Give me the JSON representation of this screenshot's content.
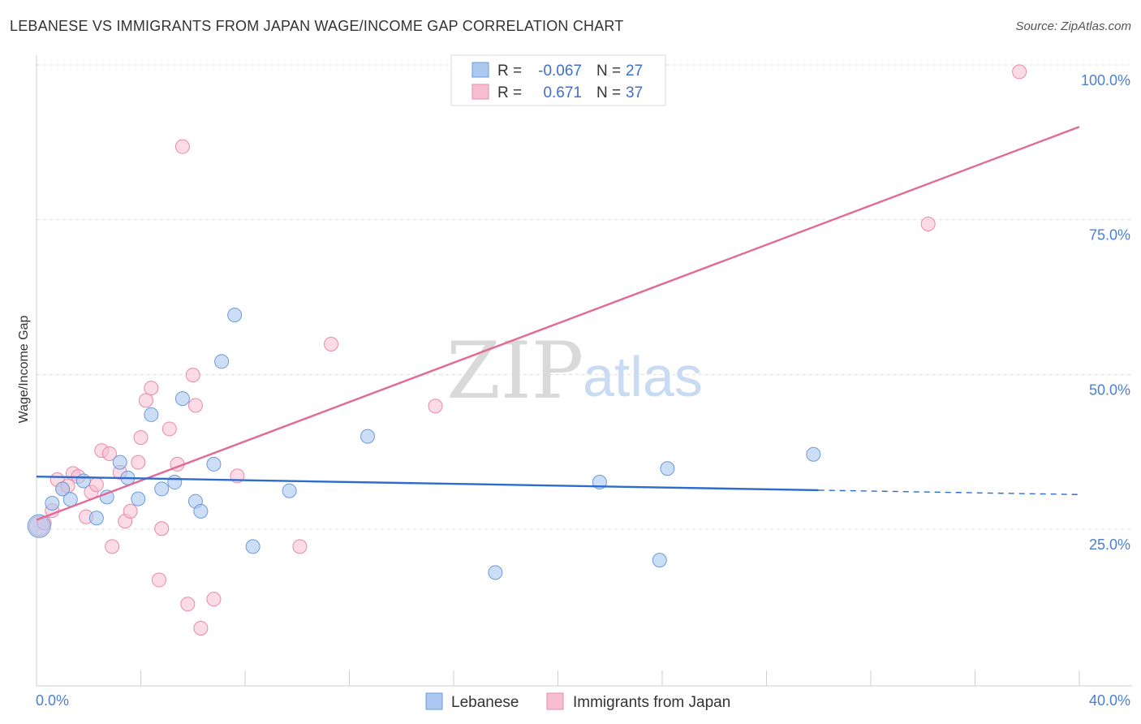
{
  "header": {
    "title": "LEBANESE VS IMMIGRANTS FROM JAPAN WAGE/INCOME GAP CORRELATION CHART",
    "source": "Source: ZipAtlas.com"
  },
  "watermark": {
    "zip": "ZIP",
    "atlas": "atlas"
  },
  "legend_box": {
    "rows": [
      {
        "r_label": "R =",
        "r_value": "-0.067",
        "n_label": "N =",
        "n_value": "27"
      },
      {
        "r_label": "R =",
        "r_value": " 0.671",
        "n_label": "N =",
        "n_value": "37"
      }
    ]
  },
  "bottom_legend": {
    "items": [
      "Lebanese",
      "Immigrants from Japan"
    ]
  },
  "colors": {
    "lebanese_fill": "#aac8f0",
    "lebanese_stroke": "#6d9ad8",
    "lebanese_line": "#2d6ccc",
    "japan_fill": "#f7bdd0",
    "japan_stroke": "#e88aa8",
    "japan_line": "#e26a96"
  },
  "chart_data": {
    "type": "scatter",
    "title": "LEBANESE VS IMMIGRANTS FROM JAPAN WAGE/INCOME GAP CORRELATION CHART",
    "xlabel": "",
    "ylabel": "Wage/Income Gap",
    "xlim": [
      0,
      40
    ],
    "ylim": [
      5,
      103
    ],
    "x_ticks_labeled": [
      "0.0%",
      "40.0%"
    ],
    "y_ticks": [
      25,
      50,
      75,
      100
    ],
    "y_tick_labels": [
      "25.0%",
      "50.0%",
      "75.0%",
      "100.0%"
    ],
    "grid": "dashed horizontal",
    "legend": "top-center",
    "series": [
      {
        "name": "Lebanese",
        "R": -0.067,
        "N": 27,
        "trend": {
          "x": [
            0,
            30
          ],
          "y": [
            33.5,
            31.3
          ],
          "dashed_to": [
            40,
            30.6
          ]
        },
        "points": [
          {
            "x": 0.1,
            "y": 25.5
          },
          {
            "x": 0.6,
            "y": 29.2
          },
          {
            "x": 1.0,
            "y": 31.5
          },
          {
            "x": 1.3,
            "y": 29.8
          },
          {
            "x": 1.8,
            "y": 32.8
          },
          {
            "x": 2.3,
            "y": 26.8
          },
          {
            "x": 2.7,
            "y": 30.2
          },
          {
            "x": 3.2,
            "y": 35.8
          },
          {
            "x": 3.5,
            "y": 33.3
          },
          {
            "x": 3.9,
            "y": 29.9
          },
          {
            "x": 4.4,
            "y": 43.5
          },
          {
            "x": 4.8,
            "y": 31.5
          },
          {
            "x": 5.3,
            "y": 32.6
          },
          {
            "x": 5.6,
            "y": 46.1
          },
          {
            "x": 6.1,
            "y": 29.5
          },
          {
            "x": 6.3,
            "y": 27.9
          },
          {
            "x": 6.8,
            "y": 35.5
          },
          {
            "x": 7.1,
            "y": 52.1
          },
          {
            "x": 7.6,
            "y": 59.6
          },
          {
            "x": 8.3,
            "y": 22.2
          },
          {
            "x": 9.7,
            "y": 31.2
          },
          {
            "x": 12.7,
            "y": 40.0
          },
          {
            "x": 17.6,
            "y": 18.0
          },
          {
            "x": 21.6,
            "y": 32.6
          },
          {
            "x": 23.9,
            "y": 20.0
          },
          {
            "x": 24.2,
            "y": 34.8
          },
          {
            "x": 29.8,
            "y": 37.1
          }
        ]
      },
      {
        "name": "Immigrants from Japan",
        "R": 0.671,
        "N": 37,
        "trend": {
          "x": [
            0,
            40
          ],
          "y": [
            26.5,
            90.0
          ]
        },
        "points": [
          {
            "x": 0.1,
            "y": 25.5
          },
          {
            "x": 0.3,
            "y": 26.0
          },
          {
            "x": 0.6,
            "y": 28.0
          },
          {
            "x": 0.8,
            "y": 33.0
          },
          {
            "x": 1.0,
            "y": 31.5
          },
          {
            "x": 1.2,
            "y": 32.0
          },
          {
            "x": 1.4,
            "y": 34.0
          },
          {
            "x": 1.6,
            "y": 33.5
          },
          {
            "x": 1.9,
            "y": 27.0
          },
          {
            "x": 2.1,
            "y": 31.0
          },
          {
            "x": 2.3,
            "y": 32.2
          },
          {
            "x": 2.5,
            "y": 37.7
          },
          {
            "x": 2.8,
            "y": 37.2
          },
          {
            "x": 2.9,
            "y": 22.2
          },
          {
            "x": 3.2,
            "y": 34.2
          },
          {
            "x": 3.4,
            "y": 26.3
          },
          {
            "x": 3.6,
            "y": 27.9
          },
          {
            "x": 3.9,
            "y": 35.8
          },
          {
            "x": 4.0,
            "y": 39.8
          },
          {
            "x": 4.2,
            "y": 45.8
          },
          {
            "x": 4.4,
            "y": 47.8
          },
          {
            "x": 4.7,
            "y": 16.8
          },
          {
            "x": 4.8,
            "y": 25.1
          },
          {
            "x": 5.1,
            "y": 41.2
          },
          {
            "x": 5.4,
            "y": 35.5
          },
          {
            "x": 5.6,
            "y": 86.8
          },
          {
            "x": 5.8,
            "y": 12.9
          },
          {
            "x": 6.0,
            "y": 49.9
          },
          {
            "x": 6.1,
            "y": 45.0
          },
          {
            "x": 6.3,
            "y": 9.0
          },
          {
            "x": 6.8,
            "y": 13.7
          },
          {
            "x": 7.7,
            "y": 33.6
          },
          {
            "x": 10.1,
            "y": 22.2
          },
          {
            "x": 11.3,
            "y": 54.9
          },
          {
            "x": 15.3,
            "y": 44.9
          },
          {
            "x": 34.2,
            "y": 74.3
          },
          {
            "x": 37.7,
            "y": 98.9
          }
        ]
      }
    ]
  }
}
